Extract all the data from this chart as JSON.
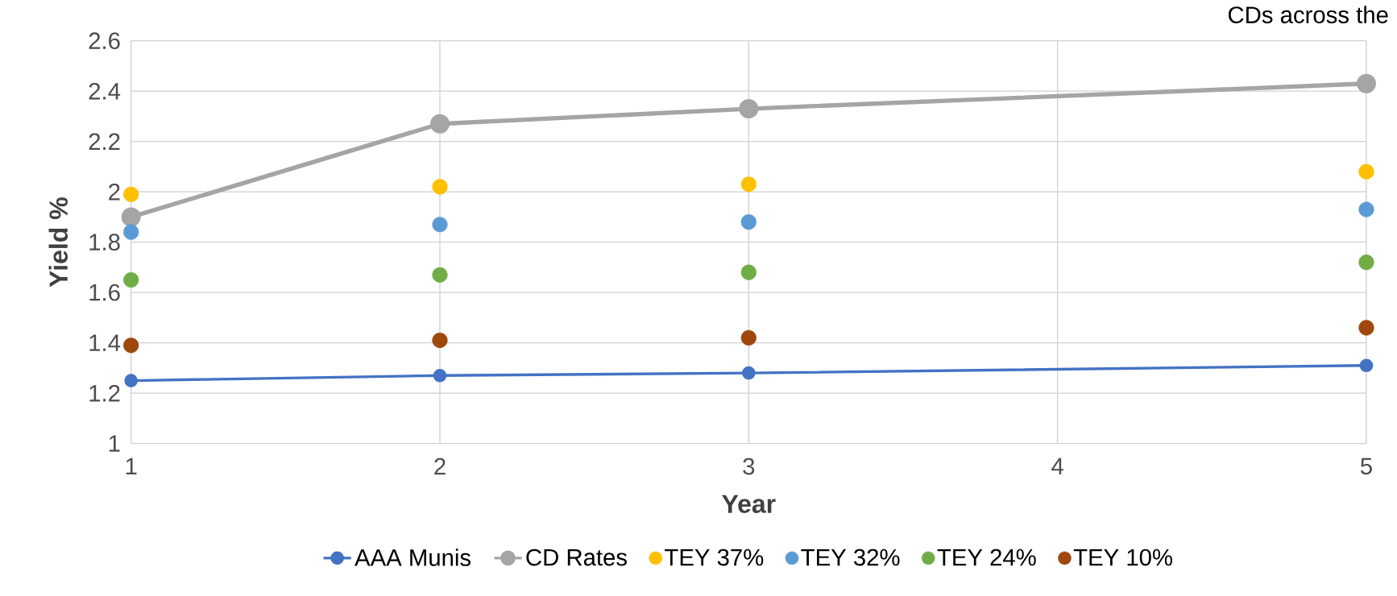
{
  "chart_data": {
    "type": "line",
    "xlabel": "Year",
    "ylabel": "Yield %",
    "annotations": [
      "CDs across the"
    ],
    "x": [
      1,
      2,
      3,
      5
    ],
    "series": [
      {
        "name": "AAA Munis",
        "color": "#4472c4",
        "values": [
          1.25,
          1.27,
          1.28,
          1.31
        ]
      },
      {
        "name": "CD Rates",
        "color": "#a5a5a5",
        "values": [
          1.9,
          2.27,
          2.33,
          2.43
        ]
      },
      {
        "name": "TEY 37%",
        "type": "scatter",
        "color": "#ffc000",
        "values": [
          1.99,
          2.02,
          2.03,
          2.08
        ]
      },
      {
        "name": "TEY 32%",
        "type": "scatter",
        "color": "#5b9bd5",
        "values": [
          1.84,
          1.87,
          1.88,
          1.93
        ]
      },
      {
        "name": "TEY 24%",
        "type": "scatter",
        "color": "#70ad47",
        "values": [
          1.65,
          1.67,
          1.68,
          1.72
        ]
      },
      {
        "name": "TEY 10%",
        "type": "scatter",
        "color": "#9e480e",
        "values": [
          1.39,
          1.41,
          1.42,
          1.46
        ]
      }
    ],
    "xlim": [
      1,
      5
    ],
    "xticks": [
      1,
      2,
      3,
      4,
      5
    ],
    "ylim": [
      1,
      2.6
    ],
    "yticks": [
      1,
      1.2,
      1.4,
      1.6,
      1.8,
      2,
      2.2,
      2.4,
      2.6
    ],
    "grid": true,
    "legend": "bottom",
    "marker": "circle"
  }
}
